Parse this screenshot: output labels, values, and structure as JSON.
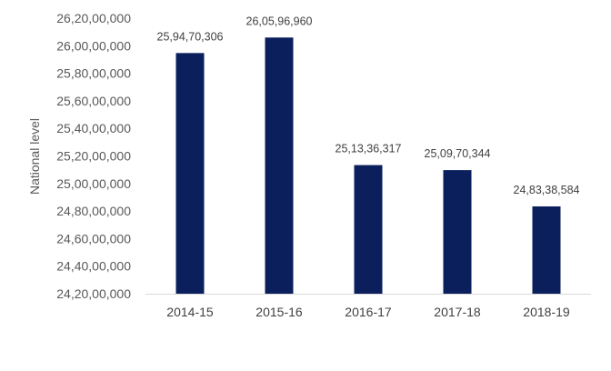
{
  "chart_data": {
    "type": "bar",
    "title": "",
    "xlabel": "",
    "ylabel": "National level",
    "categories": [
      "2014-15",
      "2015-16",
      "2016-17",
      "2017-18",
      "2018-19"
    ],
    "values": [
      259470306,
      260596960,
      251336317,
      250970344,
      248338584
    ],
    "data_labels": [
      "25,94,70,306",
      "26,05,96,960",
      "25,13,36,317",
      "25,09,70,344",
      "24,83,38,584"
    ],
    "ylim": [
      242000000,
      262000000
    ],
    "yticks": [
      242000000,
      244000000,
      246000000,
      248000000,
      250000000,
      252000000,
      254000000,
      256000000,
      258000000,
      260000000,
      262000000
    ],
    "ytick_labels": [
      "24,20,00,000",
      "24,40,00,000",
      "24,60,00,000",
      "24,80,00,000",
      "25,00,00,000",
      "25,20,00,000",
      "25,40,00,000",
      "25,60,00,000",
      "25,80,00,000",
      "26,00,00,000",
      "26,20,00,000"
    ],
    "grid": false,
    "legend": "none",
    "colors": {
      "bar": "#0a1f5c",
      "axis": "#d9d9d9"
    }
  }
}
